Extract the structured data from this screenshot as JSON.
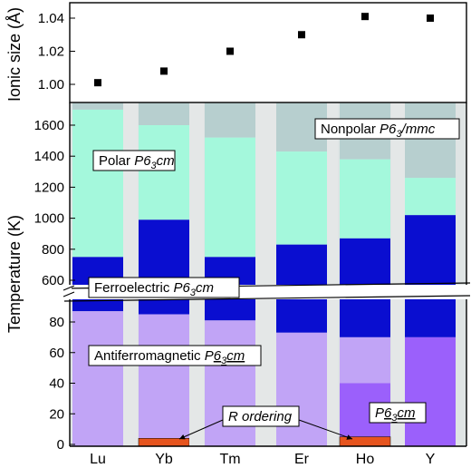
{
  "chart_data": [
    {
      "type": "scatter",
      "ylabel": "Ionic size (Å)",
      "ylim": [
        0.99,
        1.05
      ],
      "yticks": [
        "1.00",
        "1.02",
        "1.04"
      ],
      "categories": [
        "Lu",
        "Yb",
        "Tm",
        "Er",
        "Ho",
        "Y"
      ],
      "values": [
        1.001,
        1.008,
        1.02,
        1.03,
        1.041,
        1.04
      ],
      "marker": "square",
      "marker_color": "#000000"
    },
    {
      "type": "bar",
      "stacked": true,
      "ylabel": "Temperature (K)",
      "axis_break": true,
      "lower_ylim": [
        0,
        100
      ],
      "upper_ylim": [
        500,
        1750
      ],
      "lower_yticks": [
        "0",
        "20",
        "40",
        "60",
        "80"
      ],
      "upper_yticks": [
        "600",
        "800",
        "1000",
        "1200",
        "1400",
        "1600"
      ],
      "categories": [
        "Lu",
        "Yb",
        "Tm",
        "Er",
        "Ho",
        "Y"
      ],
      "phases": [
        {
          "key": "r_order",
          "color": "#e6541e"
        },
        {
          "key": "p63cm_low",
          "color": "#9b60fb"
        },
        {
          "key": "afm",
          "color": "#c1a4f6"
        },
        {
          "key": "ferro",
          "color": "#0a0ed0"
        },
        {
          "key": "polar",
          "color": "#a4f8dc"
        },
        {
          "key": "nonpolar",
          "color": "#b7cfcf"
        }
      ],
      "columns": [
        {
          "name": "Lu",
          "r_order": null,
          "p63cm_low": null,
          "afm": 87,
          "ferro_top": 750,
          "polar_top": 1700
        },
        {
          "name": "Yb",
          "r_order": 4,
          "p63cm_low": null,
          "afm": 85,
          "ferro_top": 990,
          "polar_top": 1600
        },
        {
          "name": "Tm",
          "r_order": null,
          "p63cm_low": null,
          "afm": 81,
          "ferro_top": 750,
          "polar_top": 1520
        },
        {
          "name": "Er",
          "r_order": null,
          "p63cm_low": null,
          "afm": 73,
          "ferro_top": 830,
          "polar_top": 1430
        },
        {
          "name": "Ho",
          "r_order": 5,
          "p63cm_low": 40,
          "afm": 70,
          "ferro_top": 870,
          "polar_top": 1380
        },
        {
          "name": "Y",
          "r_order": null,
          "p63cm_low": 70,
          "afm": 70,
          "ferro_top": 1020,
          "polar_top": 1260
        }
      ],
      "annotations": {
        "nonpolar": {
          "main": "Nonpolar P6",
          "sub": "3",
          "end": "/mmc"
        },
        "polar": {
          "main": "Polar P6",
          "sub": "3",
          "end": "cm"
        },
        "ferro": {
          "main": "Ferroelectric P6",
          "sub": "3",
          "end": "cm"
        },
        "afm": {
          "main": "Antiferromagnetic P",
          "ul": "6",
          "sub": "3",
          "end": "cm"
        },
        "r_ordering": {
          "main": "R ordering"
        },
        "p63cm_ul": {
          "main": "P",
          "ul": "6",
          "sub": "3",
          "end": "cm"
        }
      }
    }
  ]
}
